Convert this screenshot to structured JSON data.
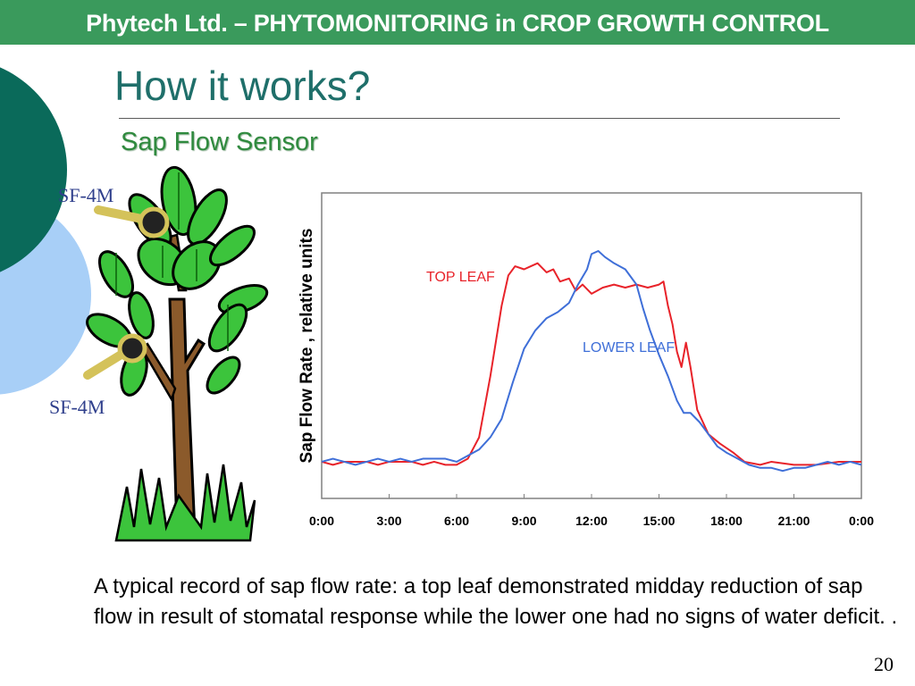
{
  "header": {
    "text": "Phytech Ltd. – PHYTOMONITORING in CROP GROWTH CONTROL"
  },
  "slide": {
    "title": "How it works?",
    "subtitle": "Sap Flow Sensor",
    "caption": "A typical record of sap flow rate: a top leaf demonstrated midday reduction of sap flow in result of stomatal response while the lower one had no signs of water deficit. .",
    "page_number": "20"
  },
  "illustration": {
    "upper_sensor_label": "SF-4M",
    "lower_sensor_label": "SF-4M"
  },
  "colors": {
    "header_green": "#3a9a5c",
    "title_teal": "#1f6f6a",
    "subtitle_green": "#2f8a3e",
    "top_leaf_red": "#e8232a",
    "lower_leaf_blue": "#3f6fd8",
    "deco_dark_teal": "#0a6a5a",
    "deco_light_blue": "#a8cff7"
  },
  "chart_data": {
    "type": "line",
    "title": "",
    "xlabel": "",
    "ylabel": "Sap Flow Rate , relative units",
    "x_ticks": [
      "0:00",
      "3:00",
      "6:00",
      "9:00",
      "12:00",
      "15:00",
      "18:00",
      "21:00",
      "0:00"
    ],
    "xlim": [
      0,
      24
    ],
    "ylim": [
      0,
      100
    ],
    "grid": false,
    "y_tick_labels": false,
    "series": [
      {
        "name": "TOP LEAF",
        "color": "#e8232a",
        "points": [
          [
            0,
            12
          ],
          [
            0.5,
            11
          ],
          [
            1,
            12
          ],
          [
            2,
            12
          ],
          [
            2.5,
            11
          ],
          [
            3,
            12
          ],
          [
            4,
            12
          ],
          [
            4.5,
            11
          ],
          [
            5,
            12
          ],
          [
            5.5,
            11
          ],
          [
            6,
            11
          ],
          [
            6.5,
            13
          ],
          [
            7,
            20
          ],
          [
            7.5,
            40
          ],
          [
            8,
            63
          ],
          [
            8.3,
            73
          ],
          [
            8.6,
            76
          ],
          [
            9,
            75
          ],
          [
            9.3,
            76
          ],
          [
            9.6,
            77
          ],
          [
            10,
            74
          ],
          [
            10.3,
            75
          ],
          [
            10.6,
            71
          ],
          [
            11,
            72
          ],
          [
            11.3,
            68
          ],
          [
            11.6,
            70
          ],
          [
            12,
            67
          ],
          [
            12.5,
            69
          ],
          [
            13,
            70
          ],
          [
            13.5,
            69
          ],
          [
            14,
            70
          ],
          [
            14.5,
            69
          ],
          [
            15,
            70
          ],
          [
            15.2,
            71
          ],
          [
            15.4,
            63
          ],
          [
            15.6,
            57
          ],
          [
            15.8,
            48
          ],
          [
            16,
            43
          ],
          [
            16.2,
            51
          ],
          [
            16.4,
            43
          ],
          [
            16.7,
            29
          ],
          [
            17.2,
            21
          ],
          [
            17.7,
            18
          ],
          [
            18.3,
            15
          ],
          [
            18.8,
            12
          ],
          [
            19.5,
            11
          ],
          [
            20,
            12
          ],
          [
            21,
            11
          ],
          [
            22,
            11
          ],
          [
            23,
            12
          ],
          [
            24,
            12
          ]
        ]
      },
      {
        "name": "LOWER LEAF",
        "color": "#3f6fd8",
        "points": [
          [
            0,
            12
          ],
          [
            0.5,
            13
          ],
          [
            1,
            12
          ],
          [
            1.5,
            11
          ],
          [
            2,
            12
          ],
          [
            2.5,
            13
          ],
          [
            3,
            12
          ],
          [
            3.5,
            13
          ],
          [
            4,
            12
          ],
          [
            4.5,
            13
          ],
          [
            5,
            13
          ],
          [
            5.5,
            13
          ],
          [
            6,
            12
          ],
          [
            6.5,
            14
          ],
          [
            7,
            16
          ],
          [
            7.5,
            20
          ],
          [
            8,
            26
          ],
          [
            8.5,
            38
          ],
          [
            9,
            49
          ],
          [
            9.5,
            55
          ],
          [
            10,
            59
          ],
          [
            10.5,
            61
          ],
          [
            11,
            64
          ],
          [
            11.4,
            70
          ],
          [
            11.8,
            75
          ],
          [
            12,
            80
          ],
          [
            12.3,
            81
          ],
          [
            12.6,
            79
          ],
          [
            13,
            77
          ],
          [
            13.5,
            75
          ],
          [
            14,
            70
          ],
          [
            14.3,
            62
          ],
          [
            14.6,
            55
          ],
          [
            15,
            47
          ],
          [
            15.4,
            40
          ],
          [
            15.8,
            32
          ],
          [
            16.1,
            28
          ],
          [
            16.4,
            28
          ],
          [
            16.8,
            25
          ],
          [
            17.2,
            21
          ],
          [
            17.6,
            17
          ],
          [
            18,
            15
          ],
          [
            18.5,
            13
          ],
          [
            19,
            11
          ],
          [
            19.5,
            10
          ],
          [
            20,
            10
          ],
          [
            20.5,
            9
          ],
          [
            21,
            10
          ],
          [
            21.5,
            10
          ],
          [
            22,
            11
          ],
          [
            22.5,
            12
          ],
          [
            23,
            11
          ],
          [
            23.5,
            12
          ],
          [
            24,
            11
          ]
        ]
      }
    ]
  }
}
